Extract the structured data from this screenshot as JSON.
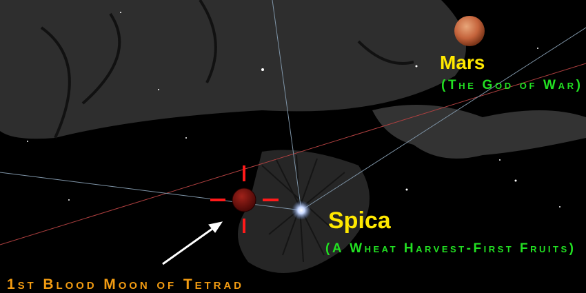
{
  "labels": {
    "mars": {
      "name": "Mars",
      "note": "(The God of War)"
    },
    "spica": {
      "name": "Spica",
      "note": "(A Wheat Harvest-First Fruits)"
    },
    "moon": {
      "caption": "1st Blood Moon of Tetrad"
    }
  }
}
